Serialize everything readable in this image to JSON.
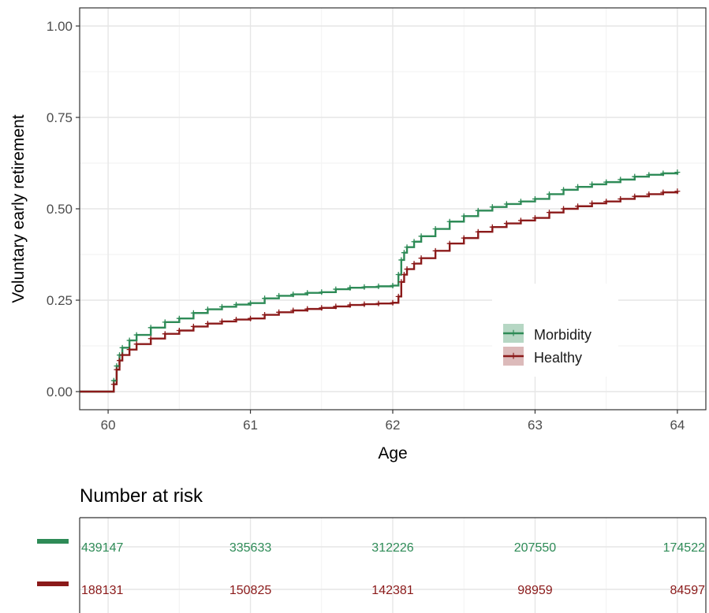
{
  "chart_data": [
    {
      "type": "line",
      "title": "",
      "xlabel": "Age",
      "ylabel": "Voluntary early retirement",
      "xlim": [
        59.8,
        64.2
      ],
      "ylim": [
        0,
        1.0
      ],
      "x_ticks": [
        60,
        61,
        62,
        63,
        64
      ],
      "y_ticks": [
        0,
        0.25,
        0.5,
        0.75,
        1.0
      ],
      "x_tick_labels": [
        "60",
        "61",
        "62",
        "63",
        "64"
      ],
      "y_tick_labels": [
        "0.00",
        "0.25",
        "0.50",
        "0.75",
        "1.00"
      ],
      "grid": true,
      "legend_position": "bottom-right",
      "series": [
        {
          "name": "Morbidity",
          "color": "#2e8b57",
          "x": [
            59.8,
            60.0,
            60.04,
            60.06,
            60.08,
            60.1,
            60.15,
            60.2,
            60.3,
            60.4,
            60.5,
            60.6,
            60.7,
            60.8,
            60.9,
            61.0,
            61.1,
            61.2,
            61.3,
            61.4,
            61.5,
            61.6,
            61.7,
            61.8,
            61.9,
            62.0,
            62.04,
            62.06,
            62.08,
            62.1,
            62.15,
            62.2,
            62.3,
            62.4,
            62.5,
            62.6,
            62.7,
            62.8,
            62.9,
            63.0,
            63.1,
            63.2,
            63.3,
            63.4,
            63.5,
            63.6,
            63.7,
            63.8,
            63.9,
            64.0
          ],
          "y": [
            0,
            0,
            0.03,
            0.07,
            0.1,
            0.12,
            0.14,
            0.155,
            0.175,
            0.19,
            0.2,
            0.215,
            0.225,
            0.232,
            0.238,
            0.242,
            0.255,
            0.262,
            0.266,
            0.27,
            0.272,
            0.28,
            0.284,
            0.286,
            0.288,
            0.29,
            0.32,
            0.36,
            0.38,
            0.395,
            0.41,
            0.425,
            0.445,
            0.465,
            0.48,
            0.495,
            0.505,
            0.513,
            0.52,
            0.527,
            0.54,
            0.552,
            0.56,
            0.567,
            0.573,
            0.58,
            0.588,
            0.593,
            0.597,
            0.6
          ]
        },
        {
          "name": "Healthy",
          "color": "#8b1a1a",
          "x": [
            59.8,
            60.0,
            60.04,
            60.06,
            60.08,
            60.1,
            60.15,
            60.2,
            60.3,
            60.4,
            60.5,
            60.6,
            60.7,
            60.8,
            60.9,
            61.0,
            61.1,
            61.2,
            61.3,
            61.4,
            61.5,
            61.6,
            61.7,
            61.8,
            61.9,
            62.0,
            62.04,
            62.06,
            62.08,
            62.1,
            62.15,
            62.2,
            62.3,
            62.4,
            62.5,
            62.6,
            62.7,
            62.8,
            62.9,
            63.0,
            63.1,
            63.2,
            63.3,
            63.4,
            63.5,
            63.6,
            63.7,
            63.8,
            63.9,
            64.0
          ],
          "y": [
            0,
            0,
            0.02,
            0.06,
            0.085,
            0.1,
            0.115,
            0.13,
            0.145,
            0.158,
            0.167,
            0.178,
            0.186,
            0.192,
            0.197,
            0.2,
            0.21,
            0.217,
            0.222,
            0.226,
            0.229,
            0.233,
            0.237,
            0.239,
            0.241,
            0.243,
            0.26,
            0.3,
            0.32,
            0.335,
            0.35,
            0.365,
            0.385,
            0.405,
            0.42,
            0.437,
            0.45,
            0.46,
            0.468,
            0.475,
            0.49,
            0.5,
            0.507,
            0.515,
            0.52,
            0.527,
            0.534,
            0.54,
            0.545,
            0.548
          ]
        }
      ]
    },
    {
      "type": "table",
      "title": "Number at risk",
      "x_ticks": [
        60,
        61,
        62,
        63,
        64
      ],
      "rows": [
        {
          "series": "Morbidity",
          "color": "#2e8b57",
          "values": [
            "439147",
            "335633",
            "312226",
            "207550",
            "174522"
          ]
        },
        {
          "series": "Healthy",
          "color": "#8b1a1a",
          "values": [
            "188131",
            "150825",
            "142381",
            "98959",
            "84597"
          ]
        }
      ]
    }
  ]
}
